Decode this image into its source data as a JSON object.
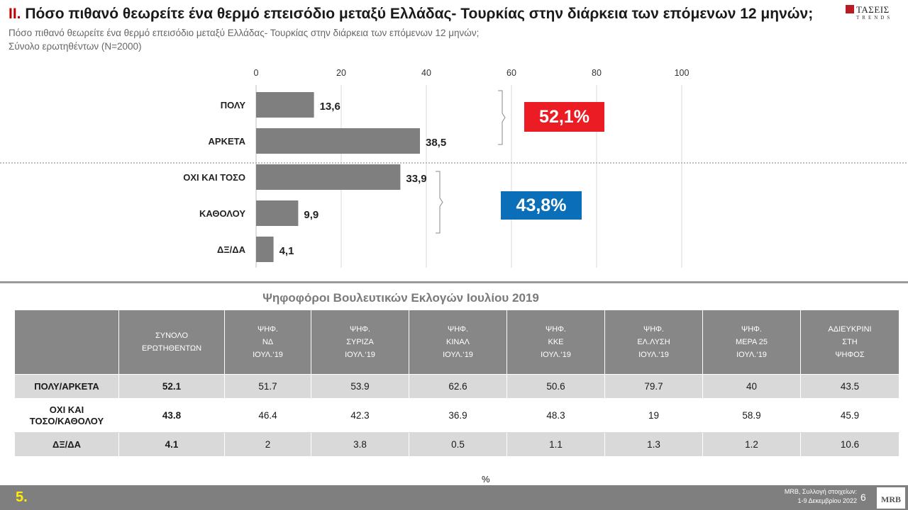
{
  "header": {
    "number": "II.",
    "title": "Πόσο πιθανό θεωρείτε ένα θερμό επεισόδιο μεταξύ Ελλάδας- Τουρκίας στην διάρκεια των επόμενων 12 μηνών;",
    "subtitle": "Πόσο πιθανό θεωρείτε ένα θερμό επεισόδιο μεταξύ Ελλάδας- Τουρκίας στην διάρκεια των επόμενων 12 μηνών;",
    "base": "Σύνολο ερωτηθέντων (N=2000)"
  },
  "logo": {
    "name": "ΤΑΣΕΙΣ",
    "sub": "TRENDS"
  },
  "chart_data": {
    "type": "bar",
    "orientation": "horizontal",
    "categories": [
      "ΠΟΛΥ",
      "ΑΡΚΕΤΑ",
      "ΟΧΙ ΚΑΙ ΤΟΣΟ",
      "ΚΑΘΟΛΟΥ",
      "ΔΞ/ΔΑ"
    ],
    "values": [
      13.6,
      38.5,
      33.9,
      9.9,
      4.1
    ],
    "value_labels": [
      "13,6",
      "38,5",
      "33,9",
      "9,9",
      "4,1"
    ],
    "xlim": [
      0,
      100
    ],
    "xticks": [
      0,
      20,
      40,
      60,
      80,
      100
    ],
    "x_axis_position": "top",
    "grid": true,
    "bar_color": "#7f7f7f",
    "groups": [
      {
        "label": "52,1%",
        "categories": [
          "ΠΟΛΥ",
          "ΑΡΚΕΤΑ"
        ],
        "color": "#ec1c24"
      },
      {
        "label": "43,8%",
        "categories": [
          "ΟΧΙ ΚΑΙ ΤΟΣΟ",
          "ΚΑΘΟΛΟΥ"
        ],
        "color": "#0a6fb8"
      }
    ]
  },
  "table": {
    "title": "Ψηφοφόροι Βουλευτικών Εκλογών Ιουλίου 2019",
    "headers": [
      "",
      "ΣΥΝΟΛΟ\nΕΡΩΤΗΘΕΝΤΩΝ",
      "ΨΗΦ.\nΝΔ\nΙΟΥΛ.‘19",
      "ΨΗΦ.\nΣΥΡΙΖΑ\nΙΟΥΛ.‘19",
      "ΨΗΦ.\nΚΙΝΑΛ\nΙΟΥΛ.‘19",
      "ΨΗΦ.\nΚΚΕ\nΙΟΥΛ.‘19",
      "ΨΗΦ.\nΕΛ.ΛΥΣΗ\nΙΟΥΛ.‘19",
      "ΨΗΦ.\nΜΕΡΑ 25\nΙΟΥΛ.‘19",
      "ΑΔΙΕΥΚΡΙΝΙ\nΣΤΗ\nΨΗΦΟΣ"
    ],
    "rows": [
      {
        "label": "ΠΟΛΥ/ΑΡΚΕΤΑ",
        "values": [
          "52.1",
          "51.7",
          "53.9",
          "62.6",
          "50.6",
          "79.7",
          "40",
          "43.5"
        ]
      },
      {
        "label": "ΟΧΙ ΚΑΙ\nΤΟΣΟ/ΚΑΘΟΛΟΥ",
        "values": [
          "43.8",
          "46.4",
          "42.3",
          "36.9",
          "48.3",
          "19",
          "58.9",
          "45.9"
        ]
      },
      {
        "label": "ΔΞ/ΔΑ",
        "values": [
          "4.1",
          "2",
          "3.8",
          "0.5",
          "1.1",
          "1.3",
          "1.2",
          "10.6"
        ]
      }
    ],
    "unit": "%"
  },
  "footer": {
    "page_marker": "5.",
    "source_line1": "MRB, Συλλογή στοιχείων:",
    "source_line2": "1-9 Δεκεμβρίου 2022",
    "page_number": "6",
    "mrb_logo": "MRB"
  }
}
